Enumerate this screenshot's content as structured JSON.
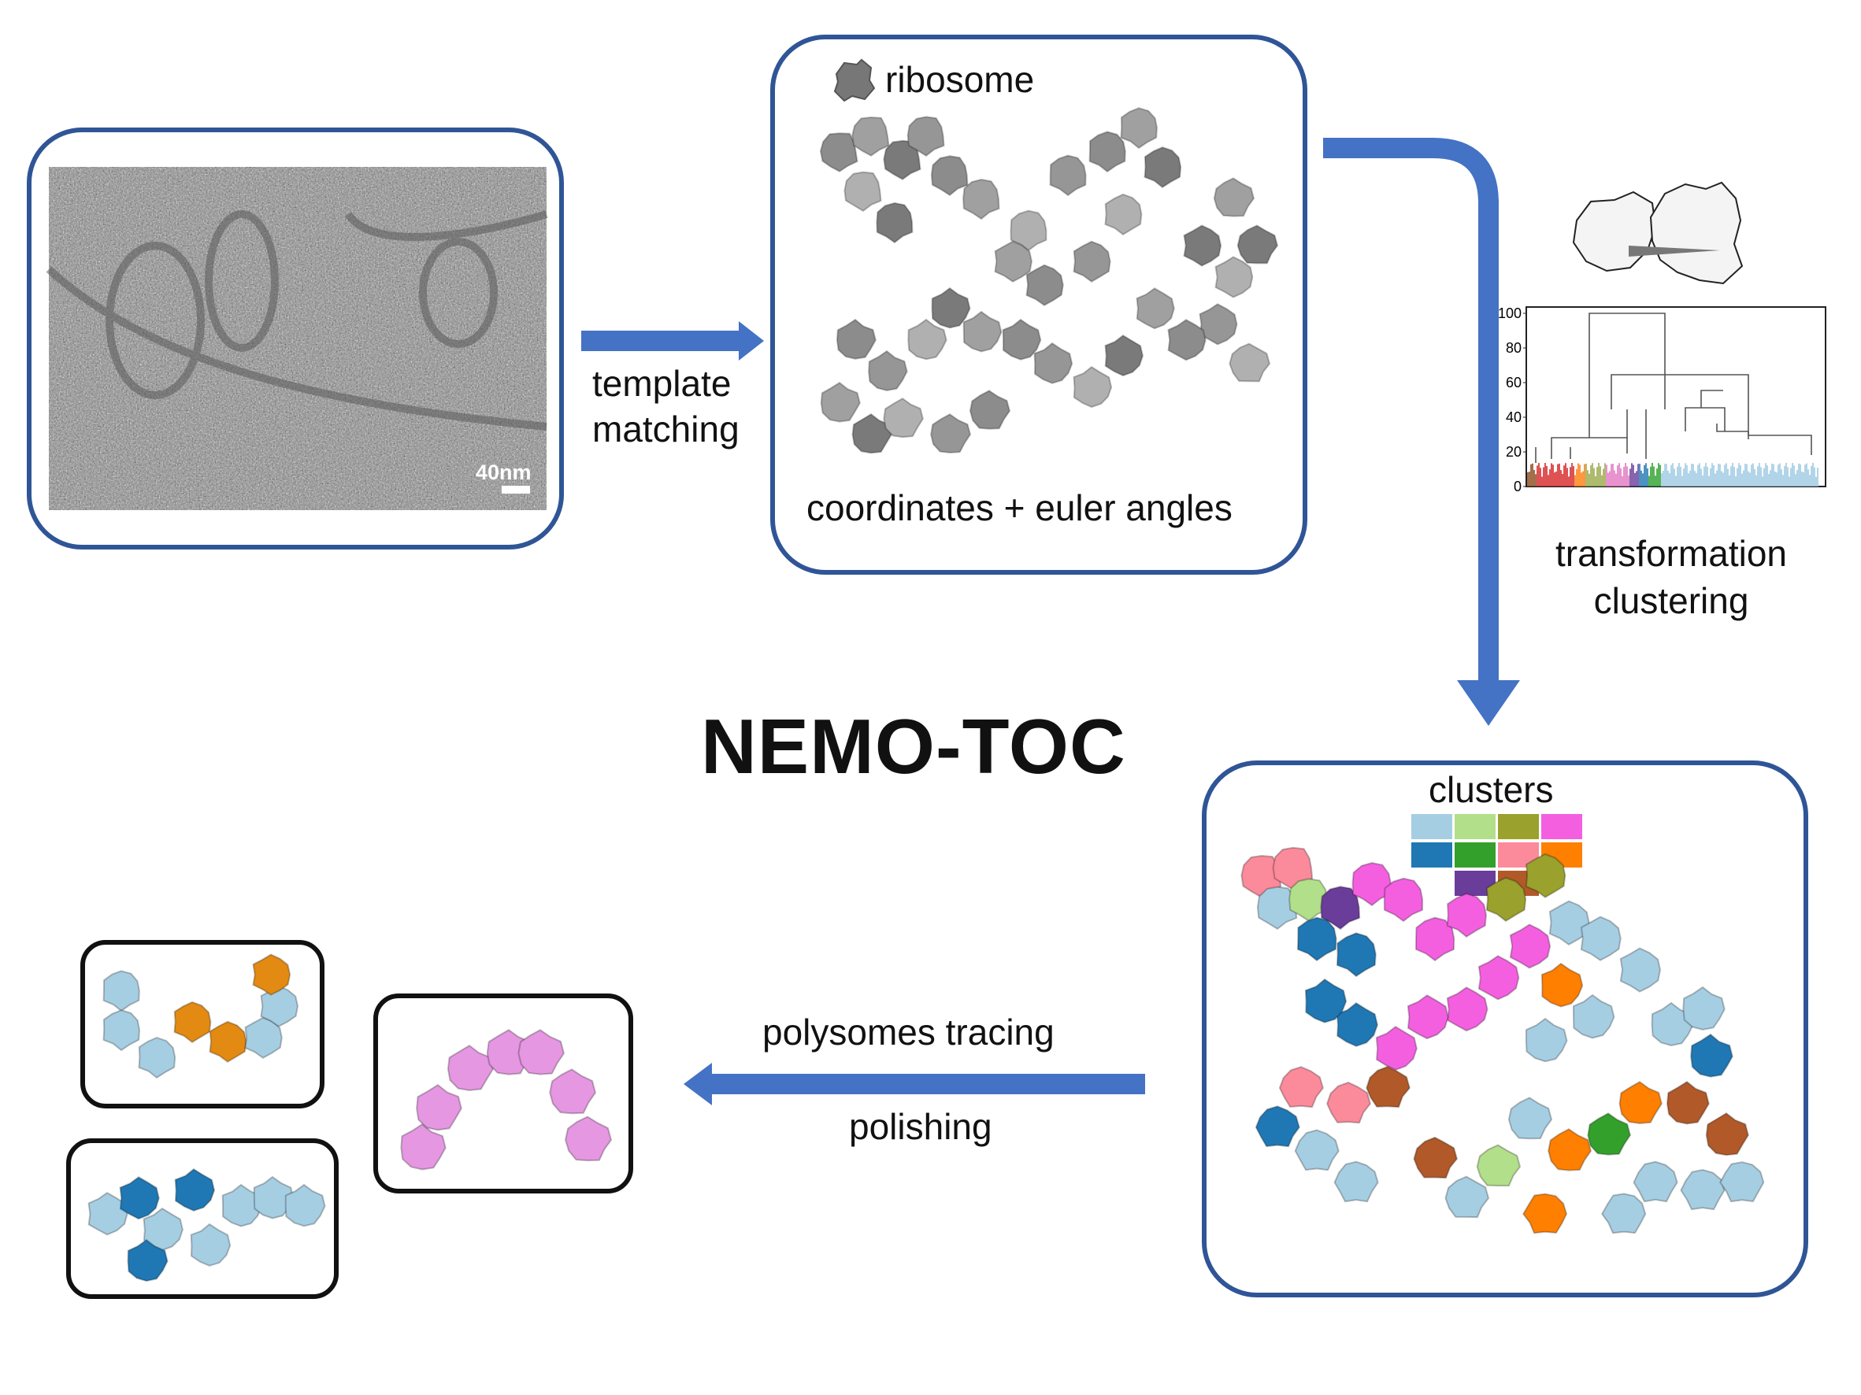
{
  "diagram": {
    "title": "NEMO-TOC",
    "tomogram": {
      "scale_bar_label": "40nm"
    },
    "arrow_1": {
      "line1": "template",
      "line2": "matching"
    },
    "particles_panel": {
      "legend_label": "ribosome",
      "caption": "coordinates + euler angles"
    },
    "arrow_2": {
      "line1": "transformation",
      "line2": "clustering"
    },
    "dendrogram": {
      "y_ticks": [
        "100",
        "80",
        "60",
        "40",
        "20",
        "0"
      ],
      "branch_colors": [
        "#8c4a1c",
        "#d62728",
        "#ff7f0e",
        "#9aa84a",
        "#e377c2",
        "#6a3d9a",
        "#1f77b4",
        "#2ca02c",
        "#9fc9e3"
      ]
    },
    "clusters_panel": {
      "label": "clusters",
      "swatches": [
        "#a6cee3",
        "#b2df8a",
        "#9aa12c",
        "#f45fe0",
        "#1f78b4",
        "#33a02c",
        "#fb8a9b",
        "#ff7f00",
        "#6a3d9a",
        "#b15928"
      ]
    },
    "arrow_3": {
      "line1": "polysomes tracing",
      "line2": "polishing"
    },
    "colors": {
      "panel_border": "#2f5597",
      "arrow": "#4472c4"
    }
  }
}
